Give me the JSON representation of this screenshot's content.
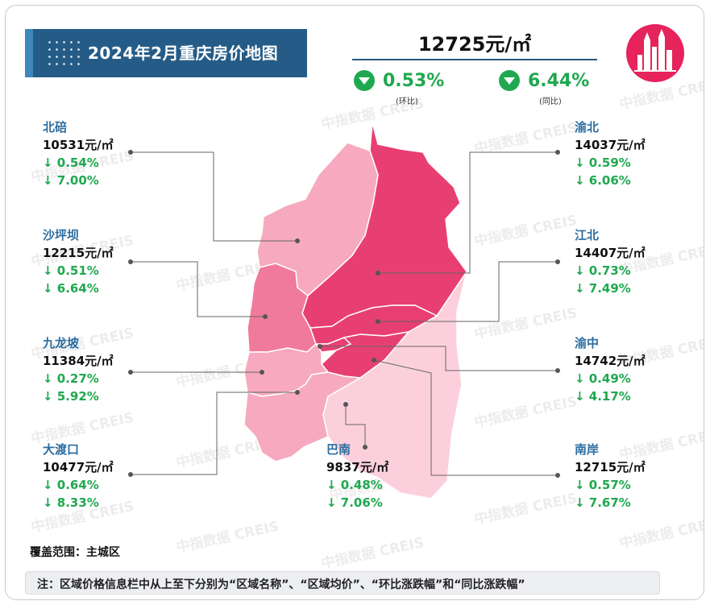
{
  "title": "2024年2月重庆房价地图",
  "summary": {
    "avg_price": "12725元/㎡",
    "mom": {
      "value": "0.53%",
      "label": "(环比)",
      "direction": "down"
    },
    "yoy": {
      "value": "6.44%",
      "label": "(同比)",
      "direction": "down"
    }
  },
  "districts": {
    "beibei": {
      "name": "北碚",
      "price": "10531元/㎡",
      "mom": "↓ 0.54%",
      "yoy": "↓ 7.00%"
    },
    "shapingba": {
      "name": "沙坪坝",
      "price": "12215元/㎡",
      "mom": "↓ 0.51%",
      "yoy": "↓ 6.64%"
    },
    "jiulongpo": {
      "name": "九龙坡",
      "price": "11384元/㎡",
      "mom": "↓ 0.27%",
      "yoy": "↓ 5.92%"
    },
    "dadukou": {
      "name": "大渡口",
      "price": "10477元/㎡",
      "mom": "↓ 0.64%",
      "yoy": "↓ 8.33%"
    },
    "banan": {
      "name": "巴南",
      "price": "9837元/㎡",
      "mom": "↓ 0.48%",
      "yoy": "↓ 7.06%"
    },
    "yubei": {
      "name": "渝北",
      "price": "14037元/㎡",
      "mom": "↓ 0.59%",
      "yoy": "↓ 6.06%"
    },
    "jiangbei": {
      "name": "江北",
      "price": "14407元/㎡",
      "mom": "↓ 0.73%",
      "yoy": "↓ 7.49%"
    },
    "yuzhong": {
      "name": "渝中",
      "price": "14742元/㎡",
      "mom": "↓ 0.49%",
      "yoy": "↓ 4.17%"
    },
    "nanan": {
      "name": "南岸",
      "price": "12715元/㎡",
      "mom": "↓ 0.57%",
      "yoy": "↓ 7.67%"
    }
  },
  "coverage": "覆盖范围：主城区",
  "note": "注：区域价格信息栏中从上至下分别为“区域名称”、“区域均价”、“环比涨跌幅”和“同比涨跌幅”",
  "watermark": "中指数据 CREIS",
  "colors": {
    "banner": "#255c87",
    "accent_green": "#1fa84f",
    "district_name": "#2c6d9f",
    "map_dark": "#e83f72",
    "map_mid": "#f07a9b",
    "map_light": "#f6a9bf",
    "map_lightest": "#fbd0dc"
  },
  "icons": {
    "down": "down-triangle-icon",
    "logo": "chongqing-skyline-logo"
  }
}
